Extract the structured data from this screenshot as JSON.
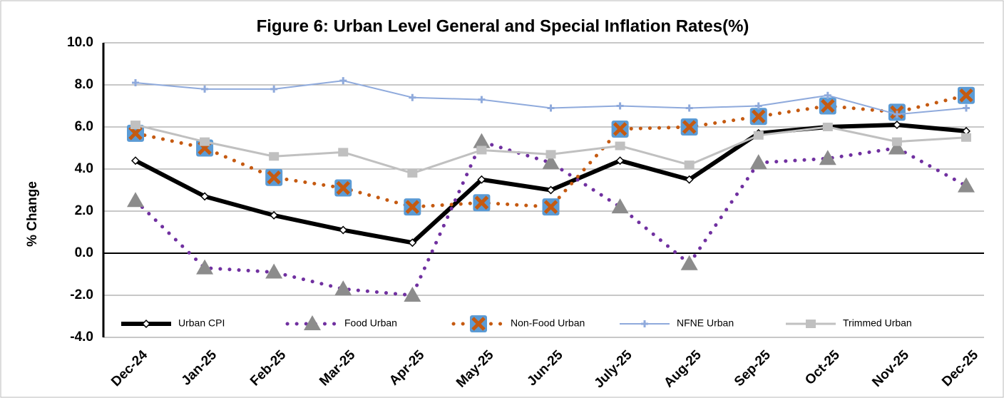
{
  "chart_data": {
    "type": "line",
    "title": "Figure 6: Urban Level General and Special Inflation Rates(%)",
    "y_label": "% Change",
    "categories": [
      "Dec-24",
      "Jan-25",
      "Feb-25",
      "Mar-25",
      "Apr-25",
      "May-25",
      "Jun-25",
      "July-25",
      "Aug-25",
      "Sep-25",
      "Oct-25",
      "Nov-25",
      "Dec-25"
    ],
    "series": [
      {
        "name": "Urban CPI",
        "color": "#000000",
        "values": [
          4.4,
          2.7,
          1.8,
          1.1,
          0.5,
          3.5,
          3.0,
          4.4,
          3.5,
          5.7,
          6.0,
          6.1,
          5.8
        ]
      },
      {
        "name": "Food Urban",
        "color": "#7030a0",
        "values": [
          2.5,
          -0.7,
          -0.9,
          -1.7,
          -2.0,
          5.3,
          4.3,
          2.2,
          -0.5,
          4.3,
          4.5,
          5.0,
          3.2
        ]
      },
      {
        "name": "Non-Food Urban",
        "color": "#c55a11",
        "values": [
          5.7,
          5.0,
          3.6,
          3.1,
          2.2,
          2.4,
          2.2,
          5.9,
          6.0,
          6.5,
          7.0,
          6.7,
          7.5
        ]
      },
      {
        "name": "NFNE Urban",
        "color": "#8faadc",
        "values": [
          8.1,
          7.8,
          7.8,
          8.2,
          7.4,
          7.3,
          6.9,
          7.0,
          6.9,
          7.0,
          7.5,
          6.6,
          6.9
        ]
      },
      {
        "name": "Trimmed Urban",
        "color": "#c0c0c0",
        "values": [
          6.1,
          5.3,
          4.6,
          4.8,
          3.8,
          4.9,
          4.7,
          5.1,
          4.2,
          5.6,
          6.0,
          5.3,
          5.5
        ]
      }
    ],
    "ylim": [
      -4,
      10
    ],
    "yticks": [
      {
        "value": -4,
        "label": "-4.0"
      },
      {
        "value": -2,
        "label": "-2.0"
      },
      {
        "value": 0,
        "label": "0.0"
      },
      {
        "value": 2,
        "label": "2.0"
      },
      {
        "value": 4,
        "label": "4.0"
      },
      {
        "value": 6,
        "label": "6.0"
      },
      {
        "value": 8,
        "label": "8.0"
      },
      {
        "value": 10,
        "label": "10.0"
      }
    ],
    "grid": true,
    "legend": "bottom"
  }
}
